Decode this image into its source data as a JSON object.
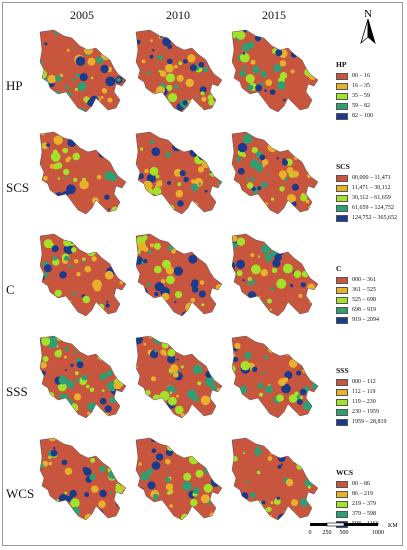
{
  "years": [
    "2005",
    "2010",
    "2015"
  ],
  "north_label": "N",
  "scale": {
    "labels": [
      "0",
      "250",
      "500",
      "1000"
    ],
    "unit": "KM"
  },
  "rows": [
    {
      "label": "HP",
      "legend_title": "HP",
      "classes": [
        {
          "range": "00 – 16",
          "color": "#c8553d"
        },
        {
          "range": "16 – 35",
          "color": "#e9b02c"
        },
        {
          "range": "35 – 59",
          "color": "#a4e22a"
        },
        {
          "range": "59 – 82",
          "color": "#2e9e73"
        },
        {
          "range": "82 – 100",
          "color": "#1a3a8c"
        }
      ]
    },
    {
      "label": "SCS",
      "legend_title": "SCS",
      "classes": [
        {
          "range": "00,000 – 11,471",
          "color": "#c8553d"
        },
        {
          "range": "11,471 – 30,112",
          "color": "#e9b02c"
        },
        {
          "range": "30,112 – 61,659",
          "color": "#a4e22a"
        },
        {
          "range": "61,659 – 124,752",
          "color": "#2e9e73"
        },
        {
          "range": "124,752 – 365,652",
          "color": "#1a3a8c"
        }
      ]
    },
    {
      "label": "C",
      "legend_title": "C",
      "classes": [
        {
          "range": "000 – 361",
          "color": "#c8553d"
        },
        {
          "range": "361 – 525",
          "color": "#e9b02c"
        },
        {
          "range": "525 – 698",
          "color": "#a4e22a"
        },
        {
          "range": "698 – 919",
          "color": "#2e9e73"
        },
        {
          "range": "919 – 2094",
          "color": "#1a3a8c"
        }
      ]
    },
    {
      "label": "SSS",
      "legend_title": "SSS",
      "classes": [
        {
          "range": "000 – 112",
          "color": "#c8553d"
        },
        {
          "range": "112 – 119",
          "color": "#e9b02c"
        },
        {
          "range": "119 – 230",
          "color": "#a4e22a"
        },
        {
          "range": "230 – 1959",
          "color": "#2e9e73"
        },
        {
          "range": "1959 – 28,819",
          "color": "#1a3a8c"
        }
      ]
    },
    {
      "label": "WCS",
      "legend_title": "WCS",
      "classes": [
        {
          "range": "00 – 86",
          "color": "#c8553d"
        },
        {
          "range": "86 – 219",
          "color": "#e9b02c"
        },
        {
          "range": "219 – 379",
          "color": "#a4e22a"
        },
        {
          "range": "379 – 598",
          "color": "#2e9e73"
        },
        {
          "range": "598 – 1166",
          "color": "#1a3a8c"
        }
      ]
    }
  ]
}
